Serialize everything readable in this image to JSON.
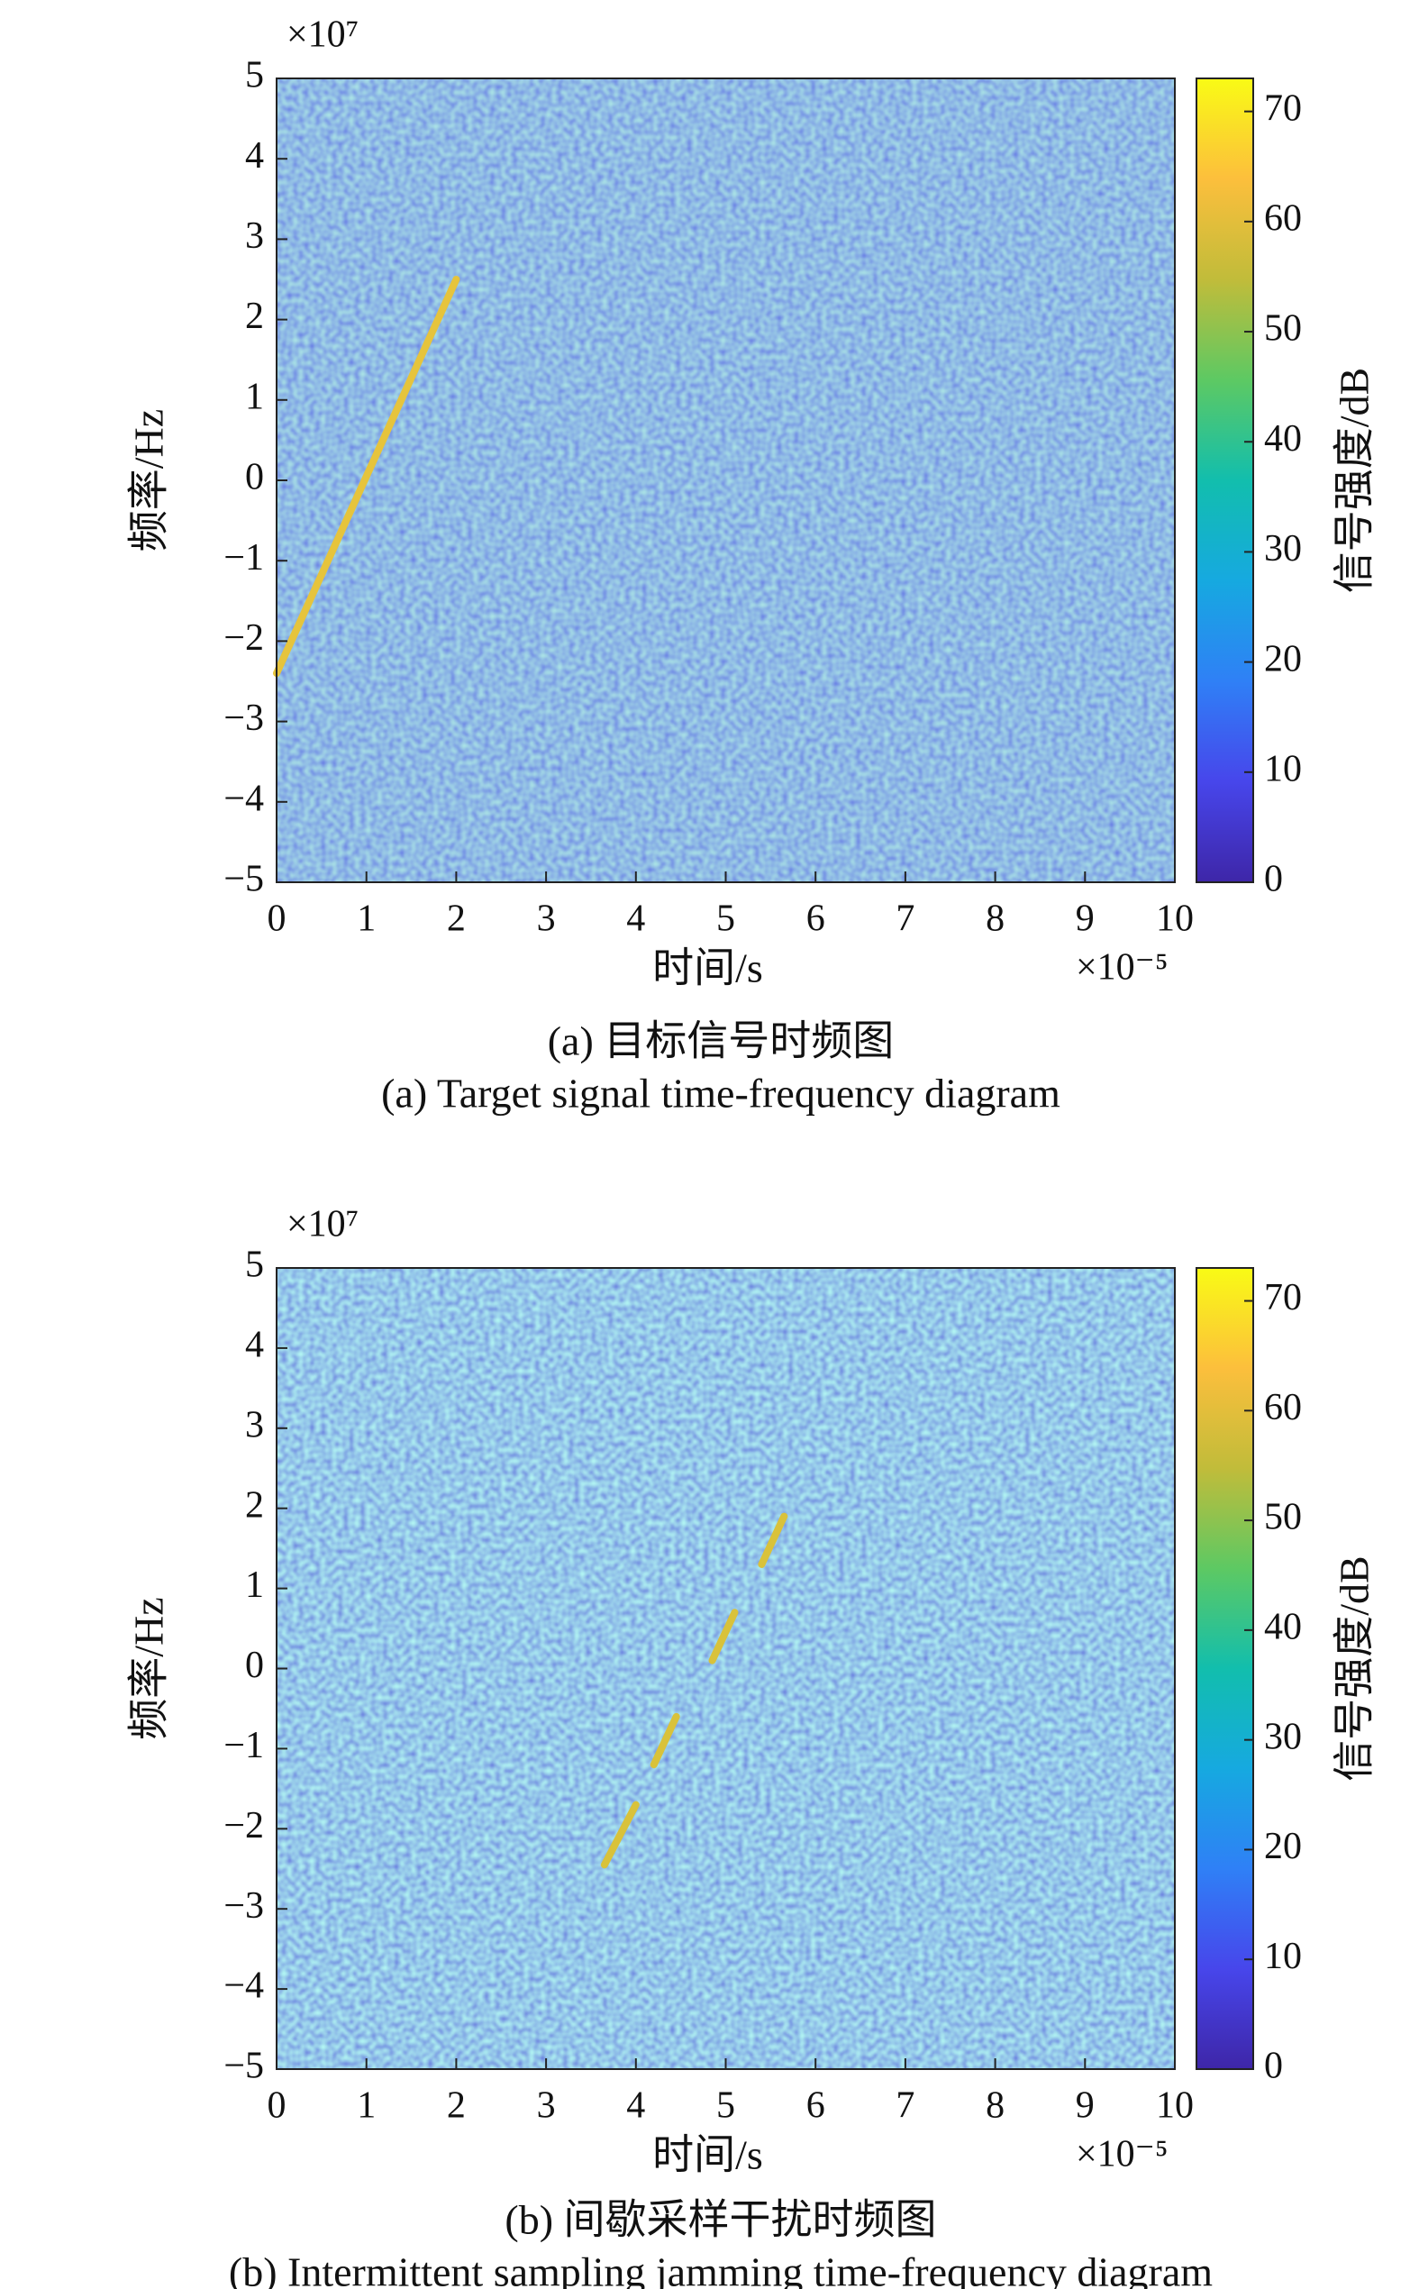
{
  "chart_data": [
    {
      "type": "spectrogram",
      "caption_cn": "(a) 目标信号时频图",
      "caption_en": "(a) Target signal time-frequency diagram",
      "xlabel": "时间/s",
      "ylabel": "频率/Hz",
      "colorbar_label": "信号强度/dB",
      "x_multiplier": "×10⁻⁵",
      "y_multiplier": "×10⁷",
      "xlim": [
        0,
        10
      ],
      "xticks": [
        0,
        1,
        2,
        3,
        4,
        5,
        6,
        7,
        8,
        9,
        10
      ],
      "ylim": [
        -5,
        5
      ],
      "yticks": [
        {
          "value": -5,
          "label": "−5"
        },
        {
          "value": -4,
          "label": "−4"
        },
        {
          "value": -3,
          "label": "−3"
        },
        {
          "value": -2,
          "label": "−2"
        },
        {
          "value": -1,
          "label": "−1"
        },
        0,
        1,
        2,
        3,
        4,
        5
      ],
      "clim": [
        0,
        73
      ],
      "cticks": [
        0,
        10,
        20,
        30,
        40,
        50,
        60,
        70
      ],
      "colormap": [
        "#3e26a8",
        "#4746eb",
        "#2f80f6",
        "#16a9e0",
        "#12bead",
        "#5dc963",
        "#c1bc3a",
        "#fcbf3c",
        "#f9fb15"
      ],
      "series": [
        {
          "color": "#e6c43c",
          "x": [
            0,
            2
          ],
          "values": [
            -2.4,
            2.5
          ]
        }
      ]
    },
    {
      "type": "spectrogram",
      "caption_cn": "(b) 间歇采样干扰时频图",
      "caption_en": "(b) Intermittent sampling jamming time-frequency diagram",
      "xlabel": "时间/s",
      "ylabel": "频率/Hz",
      "colorbar_label": "信号强度/dB",
      "x_multiplier": "×10⁻⁵",
      "y_multiplier": "×10⁷",
      "xlim": [
        0,
        10
      ],
      "xticks": [
        0,
        1,
        2,
        3,
        4,
        5,
        6,
        7,
        8,
        9,
        10
      ],
      "ylim": [
        -5,
        5
      ],
      "yticks": [
        {
          "value": -5,
          "label": "−5"
        },
        {
          "value": -4,
          "label": "−4"
        },
        {
          "value": -3,
          "label": "−3"
        },
        {
          "value": -2,
          "label": "−2"
        },
        {
          "value": -1,
          "label": "−1"
        },
        0,
        1,
        2,
        3,
        4,
        5
      ],
      "clim": [
        0,
        73
      ],
      "cticks": [
        0,
        10,
        20,
        30,
        40,
        50,
        60,
        70
      ],
      "colormap": [
        "#3e26a8",
        "#4746eb",
        "#2f80f6",
        "#16a9e0",
        "#12bead",
        "#5dc963",
        "#c1bc3a",
        "#fcbf3c",
        "#f9fb15"
      ],
      "series": [
        {
          "color": "#d9c23a",
          "x": [
            3.65,
            4.0,
            4.1,
            4.2,
            4.45,
            4.65,
            4.85,
            5.1,
            5.25,
            5.4,
            5.65
          ],
          "values": [
            -2.45,
            -1.7,
            null,
            -1.2,
            -0.6,
            null,
            0.1,
            0.7,
            null,
            1.3,
            1.9
          ]
        }
      ]
    }
  ]
}
